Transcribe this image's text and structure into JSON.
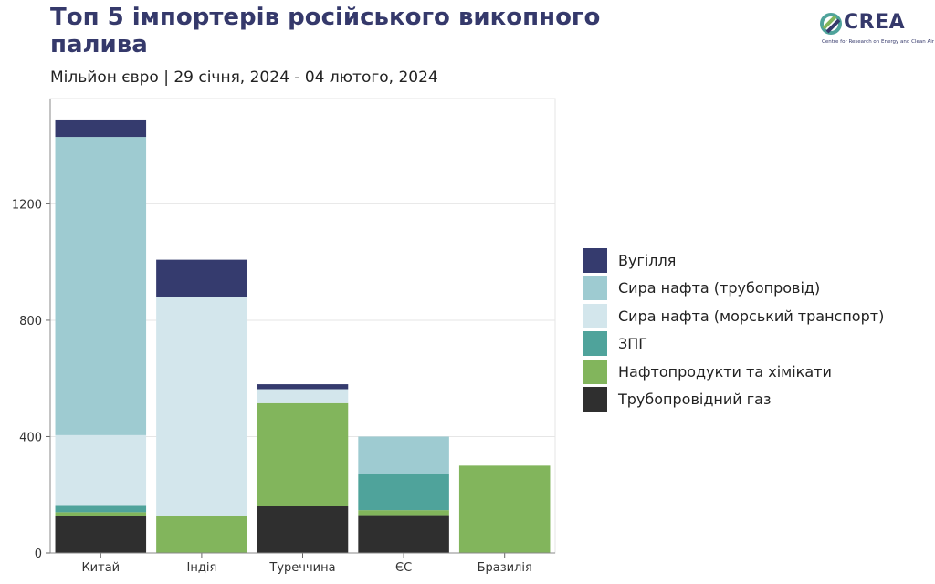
{
  "header": {
    "title": "Топ 5 імпортерів російського викопного палива",
    "subtitle": "Мільйон євро | 29 січня, 2024 - 04 лютого, 2024"
  },
  "logo": {
    "name": "CREA",
    "tagline": "Centre for Research on Energy and Clean Air"
  },
  "colors": {
    "coal": "#353b6e",
    "crude_pipeline": "#9ecbd1",
    "crude_seaborne": "#d3e6ec",
    "lng": "#4fa39b",
    "oil_products": "#82b55c",
    "pipeline_gas": "#2f2f2f"
  },
  "chart_data": {
    "type": "bar",
    "stacked": true,
    "categories": [
      "Китай",
      "Індія",
      "Туреччина",
      "ЄС",
      "Бразилія"
    ],
    "series": [
      {
        "key": "pipeline_gas",
        "name": "Трубопровідний газ",
        "values": [
          128,
          0,
          163,
          130,
          0
        ]
      },
      {
        "key": "oil_products",
        "name": "Нафтопродукти та хімікати",
        "values": [
          12,
          128,
          352,
          17,
          300
        ]
      },
      {
        "key": "lng",
        "name": "ЗПГ",
        "values": [
          25,
          0,
          0,
          125,
          0
        ]
      },
      {
        "key": "crude_seaborne",
        "name": "Сира нафта (морський транспорт)",
        "values": [
          240,
          752,
          48,
          0,
          0
        ]
      },
      {
        "key": "crude_pipeline",
        "name": "Сира нафта (трубопровід)",
        "values": [
          1025,
          0,
          0,
          128,
          0
        ]
      },
      {
        "key": "coal",
        "name": "Вугілля",
        "values": [
          60,
          128,
          17,
          0,
          0
        ]
      }
    ],
    "legend_order": [
      "coal",
      "crude_pipeline",
      "crude_seaborne",
      "lng",
      "oil_products",
      "pipeline_gas"
    ],
    "yticks": [
      "0",
      "400",
      "800",
      "1200"
    ],
    "ylim": [
      0,
      1562
    ],
    "grid": true,
    "legend_position": "right"
  }
}
